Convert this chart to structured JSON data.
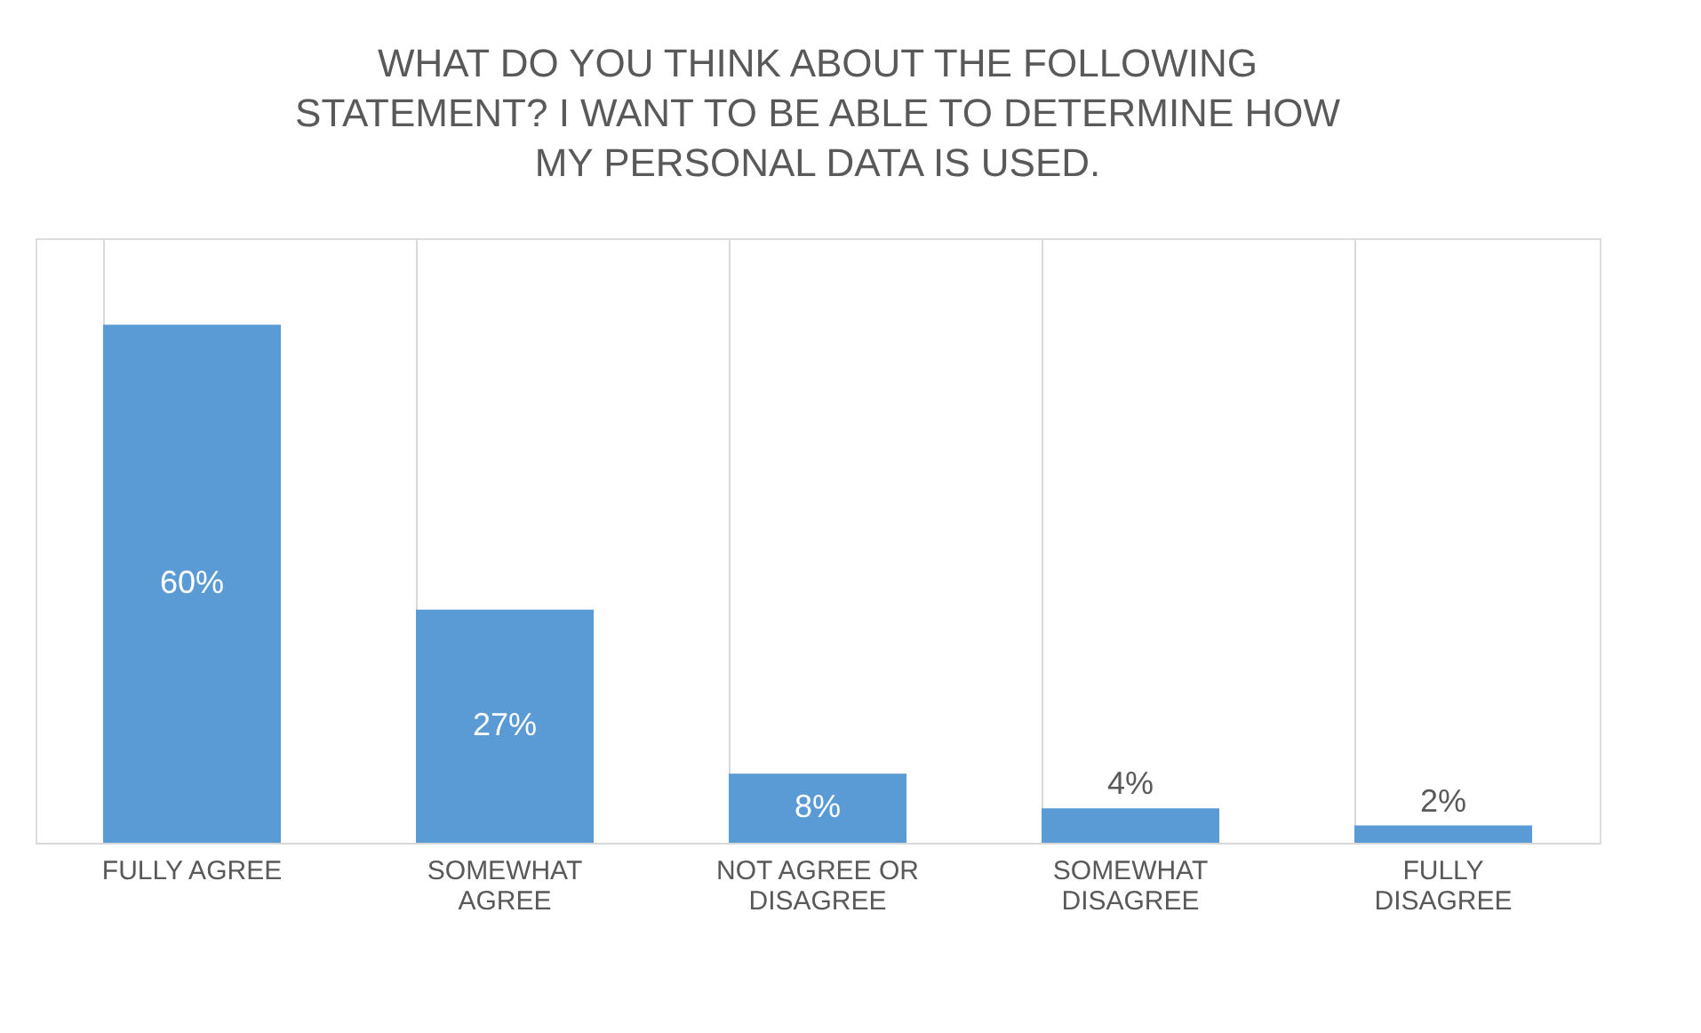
{
  "chart_data": {
    "type": "bar",
    "title": "WHAT DO YOU THINK ABOUT THE FOLLOWING STATEMENT? I WANT TO BE ABLE TO DETERMINE HOW MY PERSONAL DATA IS USED.",
    "categories": [
      "FULLY AGREE",
      "SOMEWHAT AGREE",
      "NOT AGREE OR DISAGREE",
      "SOMEWHAT DISAGREE",
      "FULLY DISAGREE"
    ],
    "values": [
      60,
      27,
      8,
      4,
      2
    ],
    "value_labels": [
      "60%",
      "27%",
      "8%",
      "4%",
      "2%"
    ],
    "color": "#5b9bd5",
    "ylim": [
      0,
      70
    ],
    "grid": "x",
    "tick_labels": "x"
  }
}
